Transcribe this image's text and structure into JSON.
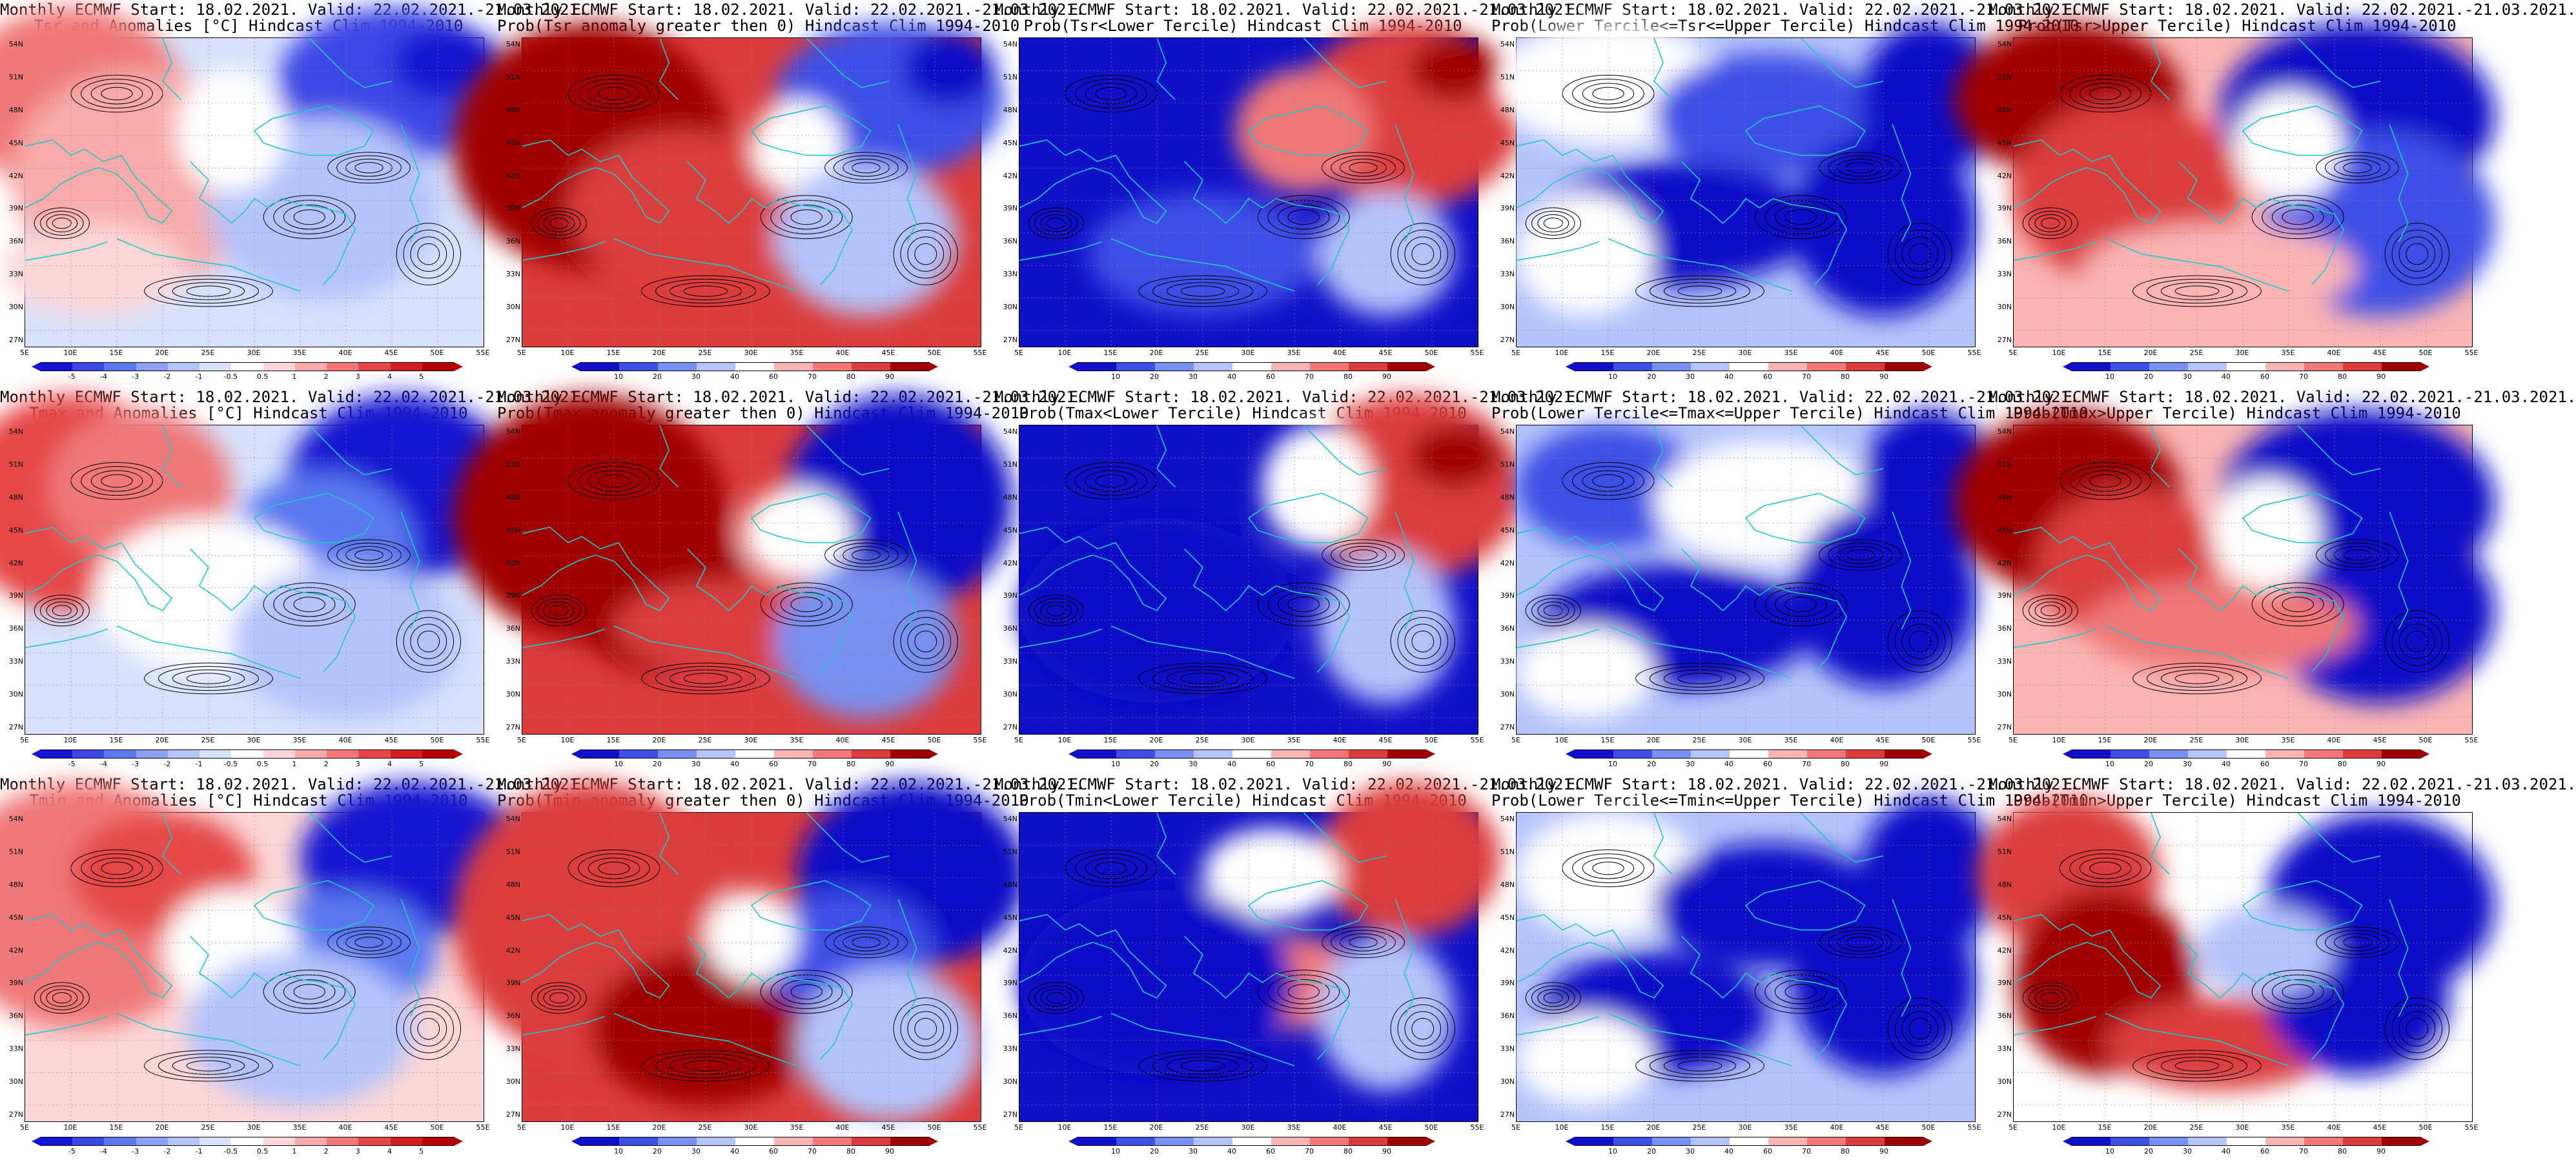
{
  "rows": [
    {
      "panels": [
        {
          "title1": "Monthly ECMWF Start: 18.02.2021. Valid: 22.02.2021.-21.03.2021.",
          "title2": "Tsr and Anomalies [°C] Hindcast Clim 1994-2010",
          "kind": "anom",
          "pattern": "tsr_anom"
        },
        {
          "title1": "Monthly ECMWF Start: 18.02.2021. Valid: 22.02.2021.-21.03.2021.",
          "title2": "Prob(Tsr anomaly greater then 0) Hindcast Clim 1994-2010",
          "kind": "prob",
          "pattern": "tsr_pos"
        },
        {
          "title1": "Monthly ECMWF Start: 18.02.2021. Valid: 22.02.2021.-21.03.2021.",
          "title2": "Prob(Tsr<Lower Tercile) Hindcast Clim 1994-2010",
          "kind": "prob",
          "pattern": "tsr_lower"
        },
        {
          "title1": "Monthly ECMWF Start: 18.02.2021. Valid: 22.02.2021.-21.03.2021.",
          "title2": "Prob(Lower Tercile<=Tsr<=Upper Tercile) Hindcast Clim 1994-2010",
          "kind": "prob",
          "pattern": "tsr_mid"
        },
        {
          "title1": "Monthly ECMWF Start: 18.02.2021. Valid: 22.02.2021.-21.03.2021.",
          "title2": "Prob(Tsr>Upper Tercile) Hindcast Clim 1994-2010",
          "kind": "prob",
          "pattern": "tsr_upper"
        }
      ]
    },
    {
      "panels": [
        {
          "title1": "Monthly ECMWF Start: 18.02.2021. Valid: 22.02.2021.-21.03.2021.",
          "title2": "Tmax and Anomalies [°C] Hindcast Clim 1994-2010",
          "kind": "anom",
          "pattern": "tmax_anom"
        },
        {
          "title1": "Monthly ECMWF Start: 18.02.2021. Valid: 22.02.2021.-21.03.2021.",
          "title2": "Prob(Tmax anomaly greater then 0) Hindcast Clim 1994-2010",
          "kind": "prob",
          "pattern": "tmax_pos"
        },
        {
          "title1": "Monthly ECMWF Start: 18.02.2021. Valid: 22.02.2021.-21.03.2021.",
          "title2": "Prob(Tmax<Lower Tercile) Hindcast Clim 1994-2010",
          "kind": "prob",
          "pattern": "tmax_lower"
        },
        {
          "title1": "Monthly ECMWF Start: 18.02.2021. Valid: 22.02.2021.-21.03.2021.",
          "title2": "Prob(Lower Tercile<=Tmax<=Upper Tercile) Hindcast Clim 1994-2010",
          "kind": "prob",
          "pattern": "tmax_mid"
        },
        {
          "title1": "Monthly ECMWF Start: 18.02.2021. Valid: 22.02.2021.-21.03.2021.",
          "title2": "Prob(Tmax>Upper Tercile) Hindcast Clim 1994-2010",
          "kind": "prob",
          "pattern": "tmax_upper"
        }
      ]
    },
    {
      "panels": [
        {
          "title1": "Monthly ECMWF Start: 18.02.2021. Valid: 22.02.2021.-21.03.2021.",
          "title2": "Tmin and Anomalies [°C] Hindcast Clim 1994-2010",
          "kind": "anom",
          "pattern": "tmin_anom"
        },
        {
          "title1": "Monthly ECMWF Start: 18.02.2021. Valid: 22.02.2021.-21.03.2021.",
          "title2": "Prob(Tmin anomaly greater then 0) Hindcast Clim 1994-2010",
          "kind": "prob",
          "pattern": "tmin_pos"
        },
        {
          "title1": "Monthly ECMWF Start: 18.02.2021. Valid: 22.02.2021.-21.03.2021.",
          "title2": "Prob(Tmin<Lower Tercile) Hindcast Clim 1994-2010",
          "kind": "prob",
          "pattern": "tmin_lower"
        },
        {
          "title1": "Monthly ECMWF Start: 18.02.2021. Valid: 22.02.2021.-21.03.2021.",
          "title2": "Prob(Lower Tercile<=Tmin<=Upper Tercile) Hindcast Clim 1994-2010",
          "kind": "prob",
          "pattern": "tmin_mid"
        },
        {
          "title1": "Monthly ECMWF Start: 18.02.2021. Valid: 22.02.2021.-21.03.2021.",
          "title2": "Prob(Tmin>Upper Tercile) Hindcast Clim 1994-2010",
          "kind": "prob",
          "pattern": "tmin_upper"
        }
      ]
    }
  ],
  "axes": {
    "lat_labels": [
      "54N",
      "51N",
      "48N",
      "45N",
      "42N",
      "39N",
      "36N",
      "33N",
      "30N",
      "27N"
    ],
    "lon_labels": [
      "5E",
      "10E",
      "15E",
      "20E",
      "25E",
      "30E",
      "35E",
      "40E",
      "45E",
      "50E",
      "55E"
    ]
  },
  "legends": {
    "anom": {
      "ticks": [
        "-5",
        "-4",
        "-3",
        "-2",
        "-1",
        "-0.5",
        "0.5",
        "1",
        "2",
        "3",
        "4",
        "5"
      ],
      "colors": [
        "#1414d2",
        "#3c46e6",
        "#5a78f0",
        "#8ca0f5",
        "#b4c3fa",
        "#d7e1fc",
        "#ffffff",
        "#fcd7d7",
        "#f8aaaa",
        "#f07878",
        "#e64646",
        "#d21e1e",
        "#b40000"
      ]
    },
    "prob": {
      "ticks": [
        "10",
        "20",
        "30",
        "40",
        "60",
        "70",
        "80",
        "90"
      ],
      "colors": [
        "#1010c8",
        "#3c50e6",
        "#7890f0",
        "#b4c3fa",
        "#ffffff",
        "#fab4b4",
        "#f07878",
        "#dc3c3c",
        "#a00000"
      ]
    }
  },
  "colors": {
    "coast": "#20c8c8",
    "contour": "#000000",
    "deep_blue": "#0a0ab4",
    "deep_red": "#a00000"
  }
}
